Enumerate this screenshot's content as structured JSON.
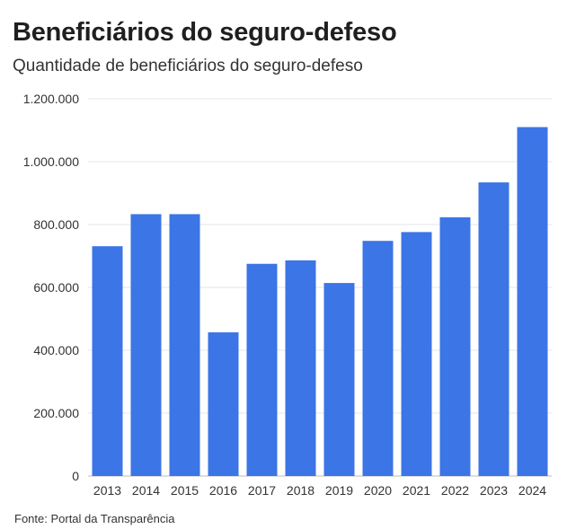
{
  "chart_data": {
    "type": "bar",
    "title": "Beneficiários do seguro-defeso",
    "subtitle": "Quantidade de beneficiários do seguro-defeso",
    "categories": [
      "2013",
      "2014",
      "2015",
      "2016",
      "2017",
      "2018",
      "2019",
      "2020",
      "2021",
      "2022",
      "2023",
      "2024"
    ],
    "values": [
      731000,
      833000,
      833000,
      457000,
      675000,
      686000,
      614000,
      748000,
      776000,
      823000,
      934000,
      1110000
    ],
    "ylim": [
      0,
      1200000
    ],
    "yticks": [
      0,
      200000,
      400000,
      600000,
      800000,
      1000000,
      1200000
    ],
    "ytick_labels": [
      "0",
      "200.000",
      "400.000",
      "600.000",
      "800.000",
      "1.000.000",
      "1.200.000"
    ],
    "xlabel": "",
    "ylabel": "",
    "grid": true,
    "legend": "none",
    "bar_color": "#3b75e6",
    "source": "Fonte: Portal da Transparência"
  }
}
